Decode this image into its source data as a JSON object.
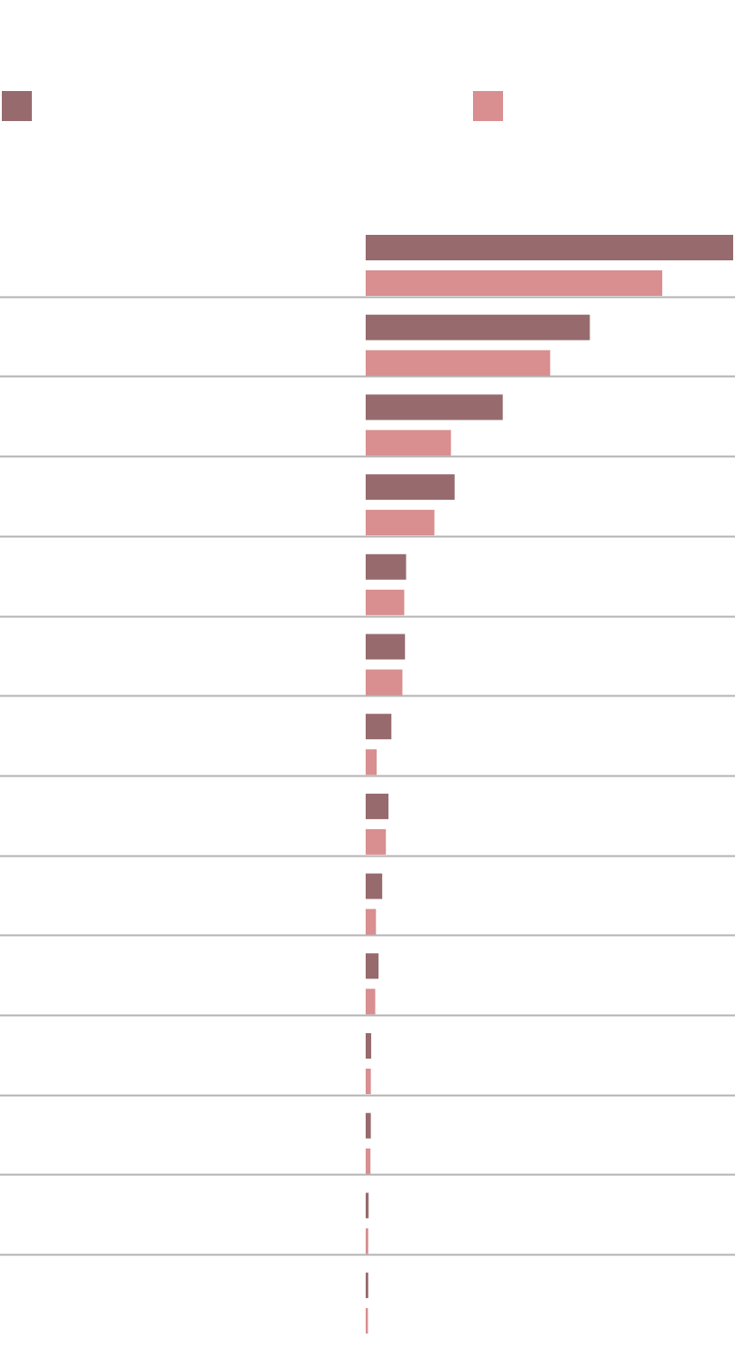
{
  "chart_data": {
    "type": "bar",
    "orientation": "horizontal",
    "title": "",
    "xlabel": "",
    "ylabel": "",
    "categories": [
      "",
      "",
      "",
      "",
      "",
      "",
      "",
      "",
      "",
      "",
      "",
      "",
      "",
      ""
    ],
    "series": [
      {
        "name": "",
        "color": "#976b6e",
        "values": [
          100,
          61,
          37.3,
          24.2,
          11,
          10.7,
          7,
          6.2,
          4.5,
          3.5,
          1.5,
          1.4,
          0.8,
          0.7
        ]
      },
      {
        "name": "",
        "color": "#d98e8f",
        "values": [
          80.7,
          50.2,
          23.2,
          18.7,
          10.5,
          10,
          3,
          5.5,
          2.8,
          2.6,
          1.4,
          1.3,
          0.7,
          0.6
        ]
      }
    ],
    "xlim": [
      0,
      100
    ],
    "grid": false,
    "legend_position": "top"
  }
}
